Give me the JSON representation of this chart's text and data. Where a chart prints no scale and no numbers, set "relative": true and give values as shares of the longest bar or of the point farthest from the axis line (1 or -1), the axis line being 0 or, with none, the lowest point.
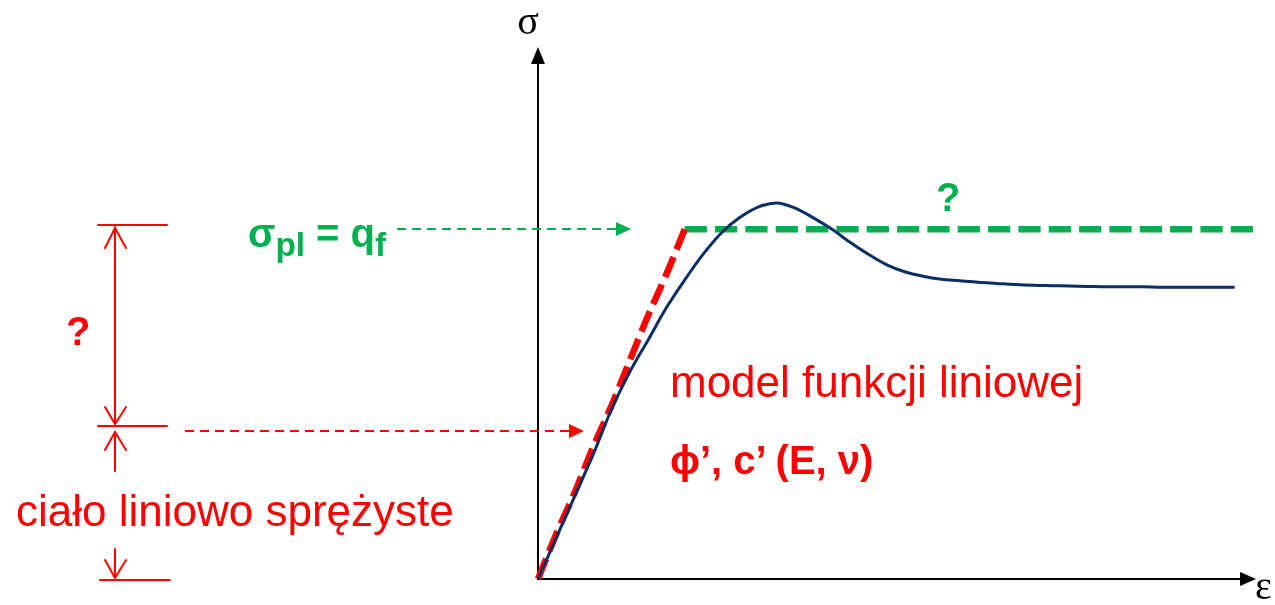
{
  "chart_data": {
    "type": "line",
    "relative": true,
    "xlabel": "ε",
    "ylabel": "σ",
    "categories": [
      null,
      null,
      null,
      null,
      null,
      null,
      null,
      null,
      null,
      null,
      null,
      null,
      null,
      null,
      null,
      null,
      null,
      null,
      null,
      null,
      null,
      null,
      null,
      null,
      null,
      null,
      null,
      null,
      null,
      null,
      null,
      null,
      null,
      null,
      null,
      null,
      null,
      null,
      null,
      null
    ],
    "series": [
      {
        "color": "#0a2f64",
        "values": [
          0,
          0.11,
          0.22,
          0.33,
          0.45,
          0.55,
          0.635,
          0.721,
          0.795,
          0.863,
          0.92,
          0.961,
          0.989,
          1,
          0.987,
          0.961,
          0.931,
          0.896,
          0.864,
          0.836,
          0.817,
          0.805,
          0.797,
          0.793,
          0.789,
          0.786,
          0.783,
          0.781,
          0.78,
          0.779,
          0.778,
          0.777,
          0.777,
          0.777,
          0.776,
          0.776,
          0.776,
          0.776,
          0.776,
          null
        ]
      },
      {
        "color": "#ff0000",
        "line_style": "dashed",
        "values": [
          0,
          0.12,
          0.23,
          0.35,
          0.46,
          0.58,
          0.7,
          0.81,
          0.93,
          null,
          null,
          null,
          null,
          null,
          null,
          null,
          null,
          null,
          null,
          null,
          null,
          null,
          null,
          null,
          null,
          null,
          null,
          null,
          null,
          null,
          null,
          null,
          null,
          null,
          null,
          null,
          null,
          null,
          null,
          null
        ]
      },
      {
        "color": "#00b050",
        "line_style": "dashed",
        "values": [
          null,
          null,
          null,
          null,
          null,
          null,
          null,
          null,
          0.93,
          0.93,
          0.93,
          0.93,
          0.93,
          0.93,
          0.93,
          0.93,
          0.93,
          0.93,
          0.93,
          0.93,
          0.93,
          0.93,
          0.93,
          0.93,
          0.93,
          0.93,
          0.93,
          0.93,
          0.93,
          0.93,
          0.93,
          0.93,
          0.93,
          0.93,
          0.93,
          0.93,
          0.93,
          0.93,
          0.93,
          0.93
        ]
      }
    ],
    "annotations": [
      "σ$_{pl}$ = q$_{f}$",
      {
        "text": "?",
        "y": 0.93
      },
      "?",
      "model funkcji liniowej",
      "ϕ’, c’ (E, ν)",
      "ciało liniowo sprężyste"
    ]
  }
}
